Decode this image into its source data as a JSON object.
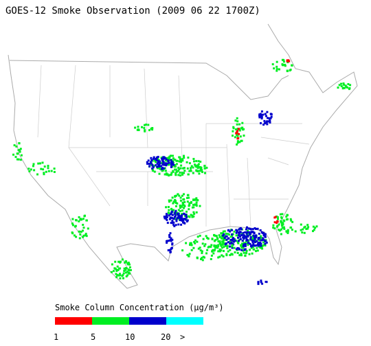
{
  "title": "GOES-12 Smoke Observation (2009 06 22  1700Z)",
  "legend": {
    "title": "Smoke Column Concentration (μg/m³)",
    "bins": [
      {
        "color": "#ff0000"
      },
      {
        "color": "#00ee22"
      },
      {
        "color": "#0000cc"
      },
      {
        "color": "#00ffff"
      }
    ],
    "labels": [
      "1",
      "5",
      "10",
      "20",
      ">"
    ]
  }
}
